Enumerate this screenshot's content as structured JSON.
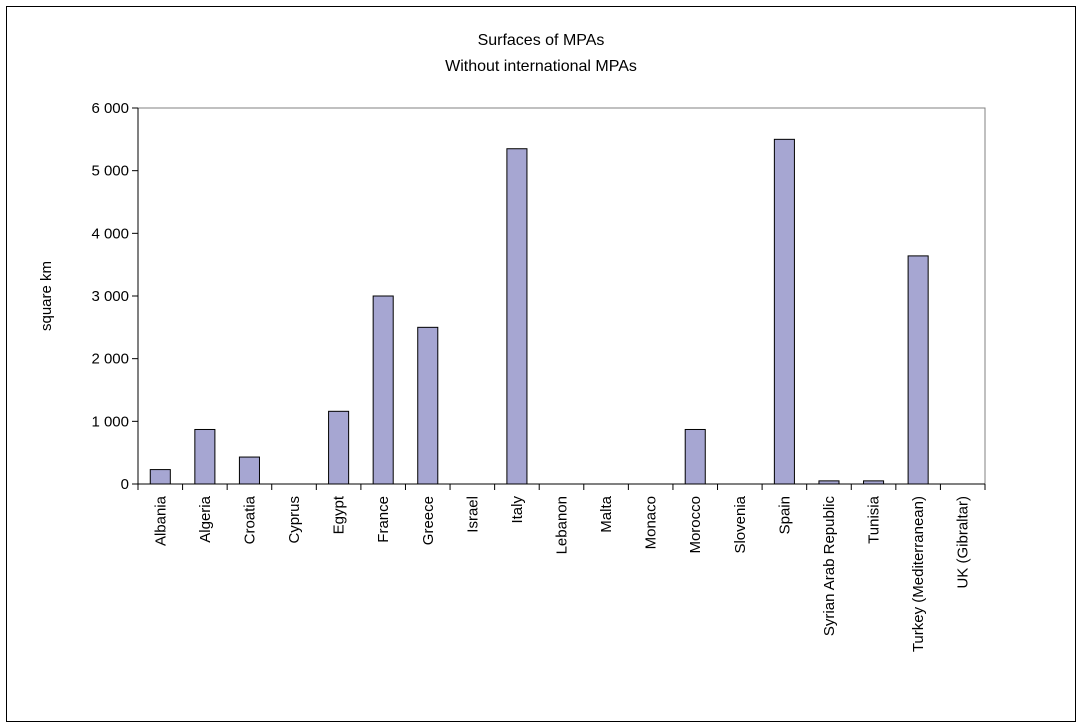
{
  "chart_data": {
    "type": "bar",
    "title": "Surfaces of MPAs",
    "subtitle": "Without international MPAs",
    "xlabel": "",
    "ylabel": "square km",
    "ylim": [
      0,
      6000
    ],
    "yticks": [
      0,
      1000,
      2000,
      3000,
      4000,
      5000,
      6000
    ],
    "ytick_labels": [
      "0",
      "1 000",
      "2 000",
      "3 000",
      "4 000",
      "5 000",
      "6 000"
    ],
    "categories": [
      "Albania",
      "Algeria",
      "Croatia",
      "Cyprus",
      "Egypt",
      "France",
      "Greece",
      "Israel",
      "Italy",
      "Lebanon",
      "Malta",
      "Monaco",
      "Morocco",
      "Slovenia",
      "Spain",
      "Syrian Arab Republic",
      "Tunisia",
      "Turkey (Mediterranean)",
      "UK (Gibraltar)"
    ],
    "values": [
      230,
      870,
      430,
      0,
      1160,
      3000,
      2500,
      0,
      5350,
      0,
      0,
      0,
      870,
      0,
      5500,
      50,
      50,
      3640,
      0
    ],
    "bar_color": "#a6a6d2",
    "bar_stroke": "#000000",
    "grid": false,
    "legend": "none"
  }
}
